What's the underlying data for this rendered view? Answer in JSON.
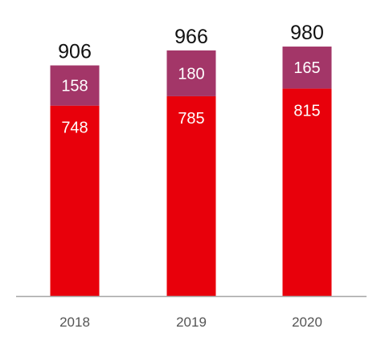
{
  "chart_data": {
    "type": "bar",
    "stacked": true,
    "categories": [
      "2018",
      "2019",
      "2020"
    ],
    "series": [
      {
        "values": [
          748,
          785,
          815
        ],
        "color": "#e8000b"
      },
      {
        "values": [
          158,
          180,
          165
        ],
        "color": "#a33668"
      }
    ],
    "totals": [
      906,
      966,
      980
    ],
    "ylim": [
      0,
      1000
    ],
    "grid": false,
    "legend": "none",
    "axis_color": "#a6a6a6"
  }
}
